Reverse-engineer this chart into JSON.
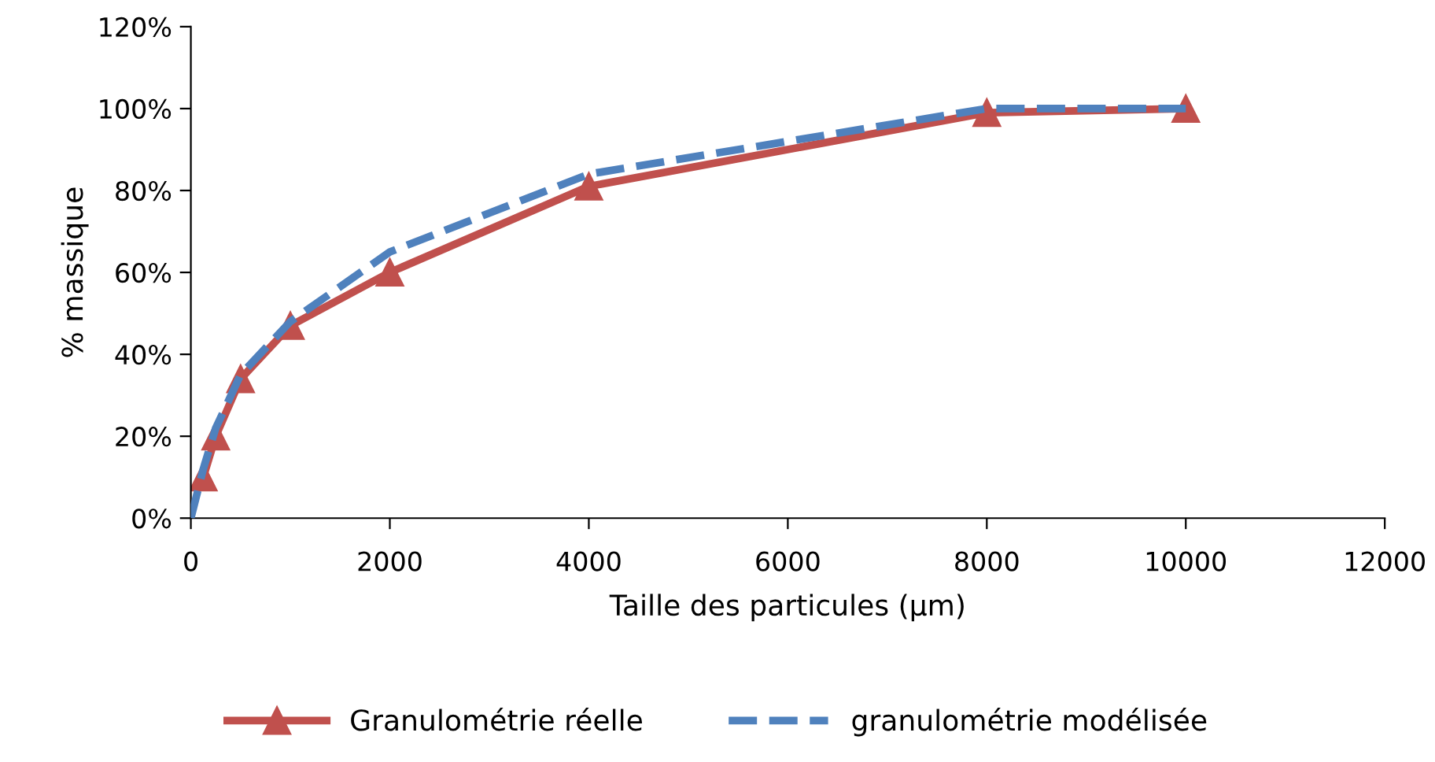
{
  "chart_data": {
    "type": "line",
    "xlabel": "Taille des particules (µm)",
    "ylabel": "% massique",
    "xlim": [
      0,
      12000
    ],
    "xticks": [
      0,
      2000,
      4000,
      6000,
      8000,
      10000,
      12000
    ],
    "ylim": [
      0,
      120
    ],
    "yticks": [
      {
        "value": 0,
        "label": "0%"
      },
      {
        "value": 20,
        "label": "20%"
      },
      {
        "value": 40,
        "label": "40%"
      },
      {
        "value": 60,
        "label": "60%"
      },
      {
        "value": 80,
        "label": "80%"
      },
      {
        "value": 100,
        "label": "100%"
      },
      {
        "value": 120,
        "label": "120%"
      }
    ],
    "grid": false,
    "legend": "bottom",
    "series": [
      {
        "name": "Granulométrie réelle",
        "color": "#c0504d",
        "marker": "triangle",
        "line_style": "solid",
        "x": [
          125,
          250,
          500,
          1000,
          2000,
          4000,
          8000,
          10000
        ],
        "values": [
          10,
          20,
          34,
          47,
          60,
          81,
          99,
          100
        ]
      },
      {
        "name": "granulométrie modélisée",
        "color": "#4f81bd",
        "marker": "none",
        "line_style": "dashed",
        "x": [
          0,
          125,
          250,
          500,
          1000,
          2000,
          4000,
          8000,
          10000
        ],
        "values": [
          0,
          12,
          22,
          35,
          48,
          65,
          84,
          100,
          100
        ]
      }
    ]
  }
}
